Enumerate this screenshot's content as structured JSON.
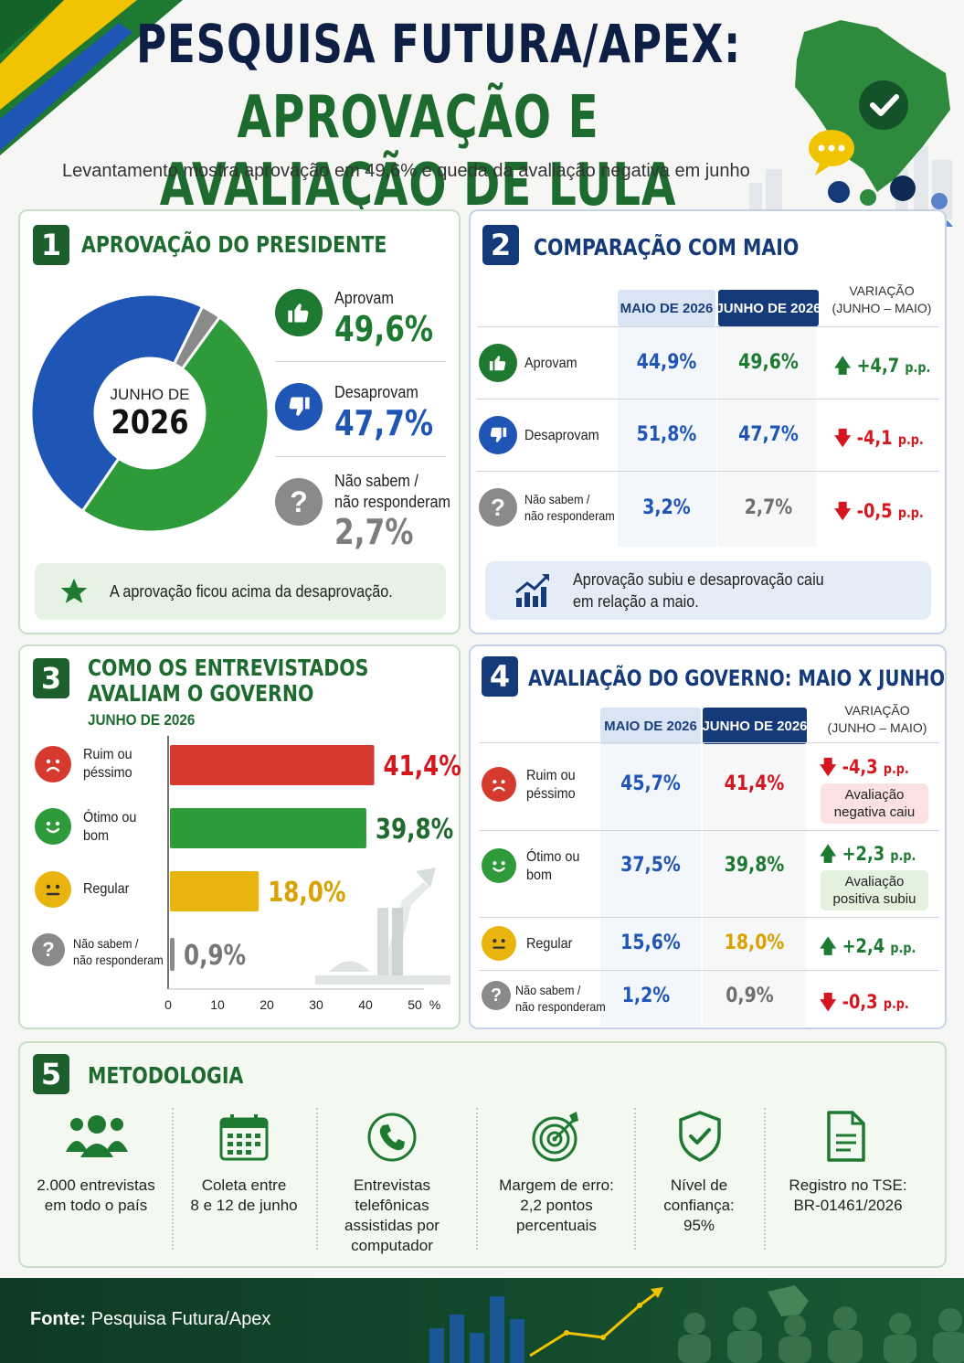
{
  "header": {
    "title_line1": "PESQUISA FUTURA/APEX:",
    "title_line2": "APROVAÇÃO E AVALIAÇÃO DE LULA",
    "subtitle": "Levantamento mostra aprovação em 49,6% e queda da avaliação negativa em junho"
  },
  "colors": {
    "green": "#2e9a3a",
    "blue": "#1f56b5",
    "gray": "#8a8a8a",
    "red": "#d63a2f",
    "yellow": "#e9b40d",
    "dark_green": "#1d6b2e",
    "navy": "#153a7a"
  },
  "panel1": {
    "number": "1",
    "title": "APROVAÇÃO DO PRESIDENTE",
    "center_line1": "JUNHO DE",
    "center_line2": "2026",
    "legend": [
      {
        "label": "Aprovam",
        "value": "49,6%",
        "icon": "thumbs-up-icon"
      },
      {
        "label": "Desaprovam",
        "value": "47,7%",
        "icon": "thumbs-down-icon"
      },
      {
        "label": "Não sabem /",
        "label2": "não responderam",
        "value": "2,7%",
        "icon": "question-icon"
      }
    ],
    "note": "A aprovação ficou acima da desaprovação."
  },
  "panel2": {
    "number": "2",
    "title": "COMPARAÇÃO COM MAIO",
    "col_may": "MAIO DE 2026",
    "col_jun": "JUNHO DE 2026",
    "col_var_1": "VARIAÇÃO",
    "col_var_2": "(JUNHO – MAIO)",
    "rows": [
      {
        "label": "Aprovam",
        "label2": "",
        "may": "44,9%",
        "jun": "49,6%",
        "var": "+4,7",
        "unit": "p.p."
      },
      {
        "label": "Desaprovam",
        "label2": "",
        "may": "51,8%",
        "jun": "47,7%",
        "var": "-4,1",
        "unit": "p.p."
      },
      {
        "label": "Não sabem /",
        "label2": "não responderam",
        "may": "3,2%",
        "jun": "2,7%",
        "var": "-0,5",
        "unit": "p.p."
      }
    ],
    "note_line1": "Aprovação subiu e desaprovação caiu",
    "note_line2": "em relação a maio."
  },
  "panel3": {
    "number": "3",
    "title_line1": "COMO OS ENTREVISTADOS",
    "title_line2": "AVALIAM O GOVERNO",
    "subtitle": "JUNHO DE 2026",
    "bars": [
      {
        "label": "Ruim ou",
        "label2": "péssimo",
        "value_text": "41,4%"
      },
      {
        "label": "Ótimo ou",
        "label2": "bom",
        "value_text": "39,8%"
      },
      {
        "label": "Regular",
        "label2": "",
        "value_text": "18,0%"
      },
      {
        "label": "Não sabem /",
        "label2": "não responderam",
        "value_text": "0,9%"
      }
    ],
    "x_unit": "%"
  },
  "panel4": {
    "number": "4",
    "title": "AVALIAÇÃO DO GOVERNO: MAIO X JUNHO",
    "col_may": "MAIO DE 2026",
    "col_jun": "JUNHO DE 2026",
    "col_var_1": "VARIAÇÃO",
    "col_var_2": "(JUNHO – MAIO)",
    "rows": [
      {
        "label": "Ruim ou",
        "label2": "péssimo",
        "may": "45,7%",
        "jun": "41,4%",
        "var": "-4,3",
        "unit": "p.p.",
        "tag1": "Avaliação",
        "tag2": "negativa caiu"
      },
      {
        "label": "Ótimo ou",
        "label2": "bom",
        "may": "37,5%",
        "jun": "39,8%",
        "var": "+2,3",
        "unit": "p.p.",
        "tag1": "Avaliação",
        "tag2": "positiva subiu"
      },
      {
        "label": "Regular",
        "label2": "",
        "may": "15,6%",
        "jun": "18,0%",
        "var": "+2,4",
        "unit": "p.p."
      },
      {
        "label": "Não sabem /",
        "label2": "não responderam",
        "may": "1,2%",
        "jun": "0,9%",
        "var": "-0,3",
        "unit": "p.p."
      }
    ]
  },
  "panel5": {
    "number": "5",
    "title": "METODOLOGIA",
    "items": [
      {
        "icon": "people-icon",
        "lines": [
          "2.000 entrevistas",
          "em todo o país"
        ]
      },
      {
        "icon": "calendar-icon",
        "lines": [
          "Coleta entre",
          "8 e 12 de junho"
        ]
      },
      {
        "icon": "phone-icon",
        "lines": [
          "Entrevistas",
          "telefônicas",
          "assistidas por",
          "computador"
        ]
      },
      {
        "icon": "target-icon",
        "lines": [
          "Margem de erro:",
          "2,2 pontos",
          "percentuais"
        ]
      },
      {
        "icon": "shield-check-icon",
        "lines": [
          "Nível de",
          "confiança:",
          "95%"
        ]
      },
      {
        "icon": "document-icon",
        "lines": [
          "Registro no TSE:",
          "BR-01461/2026"
        ]
      }
    ]
  },
  "footer": {
    "label": "Fonte:",
    "source": "Pesquisa Futura/Apex"
  },
  "chart_data": [
    {
      "type": "pie",
      "title": "APROVAÇÃO DO PRESIDENTE",
      "categories": [
        "Aprovam",
        "Desaprovam",
        "Não sabem / não responderam"
      ],
      "values": [
        49.6,
        47.7,
        2.7
      ]
    },
    {
      "type": "table",
      "title": "COMPARAÇÃO COM MAIO",
      "categories": [
        "Aprovam",
        "Desaprovam",
        "Não sabem / não responderam"
      ],
      "series": [
        {
          "name": "MAIO DE 2026",
          "values": [
            44.9,
            51.8,
            3.2
          ]
        },
        {
          "name": "JUNHO DE 2026",
          "values": [
            49.6,
            47.7,
            2.7
          ]
        },
        {
          "name": "VARIAÇÃO (JUNHO – MAIO)",
          "values": [
            4.7,
            -4.1,
            -0.5
          ]
        }
      ]
    },
    {
      "type": "bar",
      "orientation": "horizontal",
      "title": "COMO OS ENTREVISTADOS AVALIAM O GOVERNO",
      "categories": [
        "Ruim ou péssimo",
        "Ótimo ou bom",
        "Regular",
        "Não sabem / não responderam"
      ],
      "values": [
        41.4,
        39.8,
        18.0,
        0.9
      ],
      "xlim": [
        0,
        50
      ],
      "xticks": [
        0,
        10,
        20,
        30,
        40,
        50
      ],
      "xlabel": "%",
      "grid": false
    },
    {
      "type": "table",
      "title": "AVALIAÇÃO DO GOVERNO: MAIO X JUNHO",
      "categories": [
        "Ruim ou péssimo",
        "Ótimo ou bom",
        "Regular",
        "Não sabem / não responderam"
      ],
      "series": [
        {
          "name": "MAIO DE 2026",
          "values": [
            45.7,
            37.5,
            15.6,
            1.2
          ]
        },
        {
          "name": "JUNHO DE 2026",
          "values": [
            41.4,
            39.8,
            18.0,
            0.9
          ]
        },
        {
          "name": "VARIAÇÃO (JUNHO – MAIO)",
          "values": [
            -4.3,
            2.3,
            2.4,
            -0.3
          ]
        }
      ]
    }
  ]
}
